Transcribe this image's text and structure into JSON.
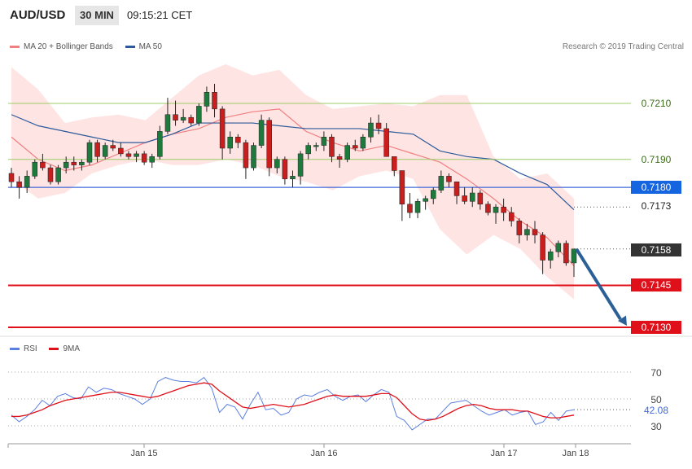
{
  "header": {
    "symbol": "AUD/USD",
    "timeframe": "30 MIN",
    "time": "09:15:21 CET",
    "credit": "Research © 2019 Trading Central"
  },
  "legend_main": {
    "ma20_bb": "MA 20 + Bollinger Bands",
    "ma50": "MA 50"
  },
  "legend_rsi": {
    "rsi": "RSI",
    "ma9": "9MA"
  },
  "colors": {
    "ma20": "#f08080",
    "band_fill": "#ffe4e4",
    "ma50": "#2c5a9a",
    "bull": "#1e7a3c",
    "bear": "#c81e1e",
    "green_level": "#9ccc65",
    "blue_level": "#3f6ad8",
    "red_level": "#e0101a",
    "arrow": "#2c5f96",
    "rsi": "#5b7fe0",
    "rsi_ma": "#e0101a"
  },
  "levels": {
    "l7210": "0.7210",
    "l7190": "0.7190",
    "l7180": "0.7180",
    "l7173": "0.7173",
    "l7158": "0.7158",
    "l7145": "0.7145",
    "l7130": "0.7130"
  },
  "rsi_labels": {
    "r70": "70",
    "r50": "50",
    "r30": "30",
    "current": "42.08"
  },
  "chart_data": [
    {
      "type": "candlestick",
      "title": "AUD/USD 30 MIN",
      "x_ticks": [
        "Jan 15",
        "Jan 16",
        "Jan 17",
        "Jan 18"
      ],
      "ylim": [
        0.7126,
        0.7234
      ],
      "series": [
        {
          "name": "MA 20 + Bollinger Bands",
          "kind": "ma20_with_bands",
          "mid": [
            0.7198,
            0.719,
            0.7186,
            0.7188,
            0.7192,
            0.7196,
            0.7199,
            0.7201,
            0.7205,
            0.7207,
            0.7208,
            0.72,
            0.7196,
            0.7193,
            0.7195,
            0.7192,
            0.7189,
            0.7183,
            0.7176,
            0.7168,
            0.7162,
            0.7152
          ],
          "upper": [
            0.7223,
            0.7215,
            0.7203,
            0.7205,
            0.7206,
            0.7204,
            0.7212,
            0.722,
            0.7224,
            0.722,
            0.7222,
            0.7213,
            0.7208,
            0.7209,
            0.721,
            0.7209,
            0.7213,
            0.7213,
            0.7191,
            0.7183,
            0.7185,
            0.7176
          ],
          "lower": [
            0.7183,
            0.7176,
            0.7178,
            0.7185,
            0.7188,
            0.719,
            0.7188,
            0.7188,
            0.719,
            0.7188,
            0.7184,
            0.7182,
            0.7179,
            0.7184,
            0.7186,
            0.7183,
            0.7165,
            0.7156,
            0.7163,
            0.7158,
            0.7148,
            0.714
          ]
        },
        {
          "name": "MA 50",
          "kind": "ma50",
          "values": [
            0.7206,
            0.7202,
            0.72,
            0.7198,
            0.7196,
            0.7196,
            0.7199,
            0.7203,
            0.7203,
            0.7203,
            0.7202,
            0.7201,
            0.7201,
            0.7201,
            0.72,
            0.7199,
            0.7193,
            0.7191,
            0.719,
            0.7185,
            0.7181,
            0.7172
          ]
        }
      ],
      "ohlc": [
        [
          0.7185,
          0.7187,
          0.718,
          0.7182
        ],
        [
          0.7182,
          0.7184,
          0.7176,
          0.718
        ],
        [
          0.718,
          0.7186,
          0.7178,
          0.7184
        ],
        [
          0.7184,
          0.719,
          0.7183,
          0.7189
        ],
        [
          0.7189,
          0.7192,
          0.7186,
          0.7187
        ],
        [
          0.7187,
          0.7188,
          0.7181,
          0.7182
        ],
        [
          0.7182,
          0.7188,
          0.7181,
          0.7187
        ],
        [
          0.7187,
          0.7191,
          0.7185,
          0.7189
        ],
        [
          0.7189,
          0.7191,
          0.7186,
          0.7188
        ],
        [
          0.7188,
          0.719,
          0.7186,
          0.7189
        ],
        [
          0.7189,
          0.7197,
          0.7188,
          0.7196
        ],
        [
          0.7196,
          0.7197,
          0.7189,
          0.7191
        ],
        [
          0.7191,
          0.7196,
          0.719,
          0.7195
        ],
        [
          0.7195,
          0.7197,
          0.7193,
          0.7194
        ],
        [
          0.7194,
          0.7196,
          0.7191,
          0.7192
        ],
        [
          0.7192,
          0.7193,
          0.719,
          0.7191
        ],
        [
          0.7191,
          0.7193,
          0.7189,
          0.7192
        ],
        [
          0.7192,
          0.7193,
          0.7188,
          0.7189
        ],
        [
          0.7189,
          0.7192,
          0.7187,
          0.7191
        ],
        [
          0.7191,
          0.7202,
          0.719,
          0.72
        ],
        [
          0.72,
          0.7212,
          0.7199,
          0.7206
        ],
        [
          0.7206,
          0.7211,
          0.7202,
          0.7204
        ],
        [
          0.7204,
          0.7208,
          0.7203,
          0.7205
        ],
        [
          0.7205,
          0.7206,
          0.7202,
          0.7203
        ],
        [
          0.7203,
          0.721,
          0.7202,
          0.7209
        ],
        [
          0.7209,
          0.7216,
          0.7207,
          0.7214
        ],
        [
          0.7214,
          0.7217,
          0.7205,
          0.7208
        ],
        [
          0.7208,
          0.7209,
          0.719,
          0.7194
        ],
        [
          0.7194,
          0.72,
          0.7192,
          0.7198
        ],
        [
          0.7198,
          0.7199,
          0.7194,
          0.7196
        ],
        [
          0.7196,
          0.7197,
          0.7183,
          0.7187
        ],
        [
          0.7187,
          0.7196,
          0.7186,
          0.7195
        ],
        [
          0.7195,
          0.7206,
          0.7194,
          0.7204
        ],
        [
          0.7204,
          0.7205,
          0.7184,
          0.7187
        ],
        [
          0.7187,
          0.7191,
          0.7185,
          0.719
        ],
        [
          0.719,
          0.7191,
          0.7181,
          0.7183
        ],
        [
          0.7183,
          0.7186,
          0.718,
          0.7184
        ],
        [
          0.7184,
          0.7193,
          0.7181,
          0.7192
        ],
        [
          0.7192,
          0.7196,
          0.719,
          0.7195
        ],
        [
          0.7195,
          0.7196,
          0.7193,
          0.7195
        ],
        [
          0.7195,
          0.72,
          0.7193,
          0.7198
        ],
        [
          0.7198,
          0.7199,
          0.7189,
          0.7191
        ],
        [
          0.7191,
          0.7192,
          0.7187,
          0.719
        ],
        [
          0.719,
          0.7196,
          0.7189,
          0.7195
        ],
        [
          0.7195,
          0.7197,
          0.7193,
          0.7194
        ],
        [
          0.7194,
          0.7199,
          0.7193,
          0.7198
        ],
        [
          0.7198,
          0.7205,
          0.7196,
          0.7203
        ],
        [
          0.7203,
          0.7206,
          0.7199,
          0.7201
        ],
        [
          0.7201,
          0.7203,
          0.7191,
          0.7191
        ],
        [
          0.7191,
          0.7191,
          0.7184,
          0.7186
        ],
        [
          0.7186,
          0.7186,
          0.7168,
          0.7174
        ],
        [
          0.7174,
          0.7178,
          0.7169,
          0.7171
        ],
        [
          0.7171,
          0.7176,
          0.7169,
          0.7175
        ],
        [
          0.7175,
          0.7177,
          0.7172,
          0.7176
        ],
        [
          0.7176,
          0.718,
          0.7174,
          0.7179
        ],
        [
          0.7179,
          0.7186,
          0.7178,
          0.7184
        ],
        [
          0.7184,
          0.7185,
          0.718,
          0.7182
        ],
        [
          0.7182,
          0.7182,
          0.7174,
          0.7177
        ],
        [
          0.7177,
          0.718,
          0.7174,
          0.7175
        ],
        [
          0.7175,
          0.718,
          0.7173,
          0.7178
        ],
        [
          0.7178,
          0.7179,
          0.7172,
          0.7174
        ],
        [
          0.7174,
          0.7175,
          0.717,
          0.7171
        ],
        [
          0.7171,
          0.7174,
          0.7167,
          0.7173
        ],
        [
          0.7173,
          0.7176,
          0.7168,
          0.7171
        ],
        [
          0.7171,
          0.7173,
          0.7166,
          0.7168
        ],
        [
          0.7168,
          0.7169,
          0.716,
          0.7163
        ],
        [
          0.7163,
          0.7167,
          0.7161,
          0.7165
        ],
        [
          0.7165,
          0.7168,
          0.716,
          0.7163
        ],
        [
          0.7163,
          0.7164,
          0.7149,
          0.7154
        ],
        [
          0.7154,
          0.7158,
          0.7151,
          0.7157
        ],
        [
          0.7157,
          0.7161,
          0.7155,
          0.716
        ],
        [
          0.716,
          0.7161,
          0.7152,
          0.7153
        ],
        [
          0.7153,
          0.7157,
          0.7148,
          0.7158
        ]
      ]
    },
    {
      "type": "line",
      "title": "",
      "ylim": [
        22,
        82
      ],
      "y_ticks": [
        70,
        50,
        30
      ],
      "series": [
        {
          "name": "RSI",
          "values": [
            38,
            33,
            37,
            42,
            49,
            45,
            52,
            54,
            51,
            50,
            59,
            55,
            58,
            57,
            54,
            52,
            50,
            46,
            50,
            63,
            66,
            64,
            63,
            63,
            62,
            66,
            58,
            40,
            46,
            44,
            35,
            46,
            55,
            42,
            43,
            38,
            40,
            50,
            53,
            52,
            55,
            57,
            52,
            49,
            52,
            53,
            48,
            53,
            57,
            55,
            37,
            34,
            27,
            31,
            35,
            35,
            41,
            47,
            48,
            49,
            45,
            41,
            38,
            40,
            42,
            38,
            40,
            41,
            31,
            33,
            40,
            34,
            41,
            42
          ]
        },
        {
          "name": "9MA",
          "values": [
            37,
            37,
            38,
            40,
            42,
            45,
            47,
            49,
            50,
            51,
            52,
            53,
            54,
            55,
            55,
            54,
            53,
            52,
            51,
            52,
            54,
            56,
            58,
            60,
            61,
            62,
            61,
            56,
            52,
            48,
            44,
            43,
            44,
            45,
            46,
            45,
            44,
            45,
            46,
            48,
            50,
            52,
            53,
            52,
            52,
            52,
            52,
            53,
            54,
            54,
            51,
            45,
            39,
            35,
            34,
            35,
            37,
            40,
            43,
            45,
            46,
            45,
            43,
            42,
            42,
            42,
            41,
            41,
            39,
            37,
            36,
            36,
            37,
            38
          ]
        }
      ]
    }
  ]
}
